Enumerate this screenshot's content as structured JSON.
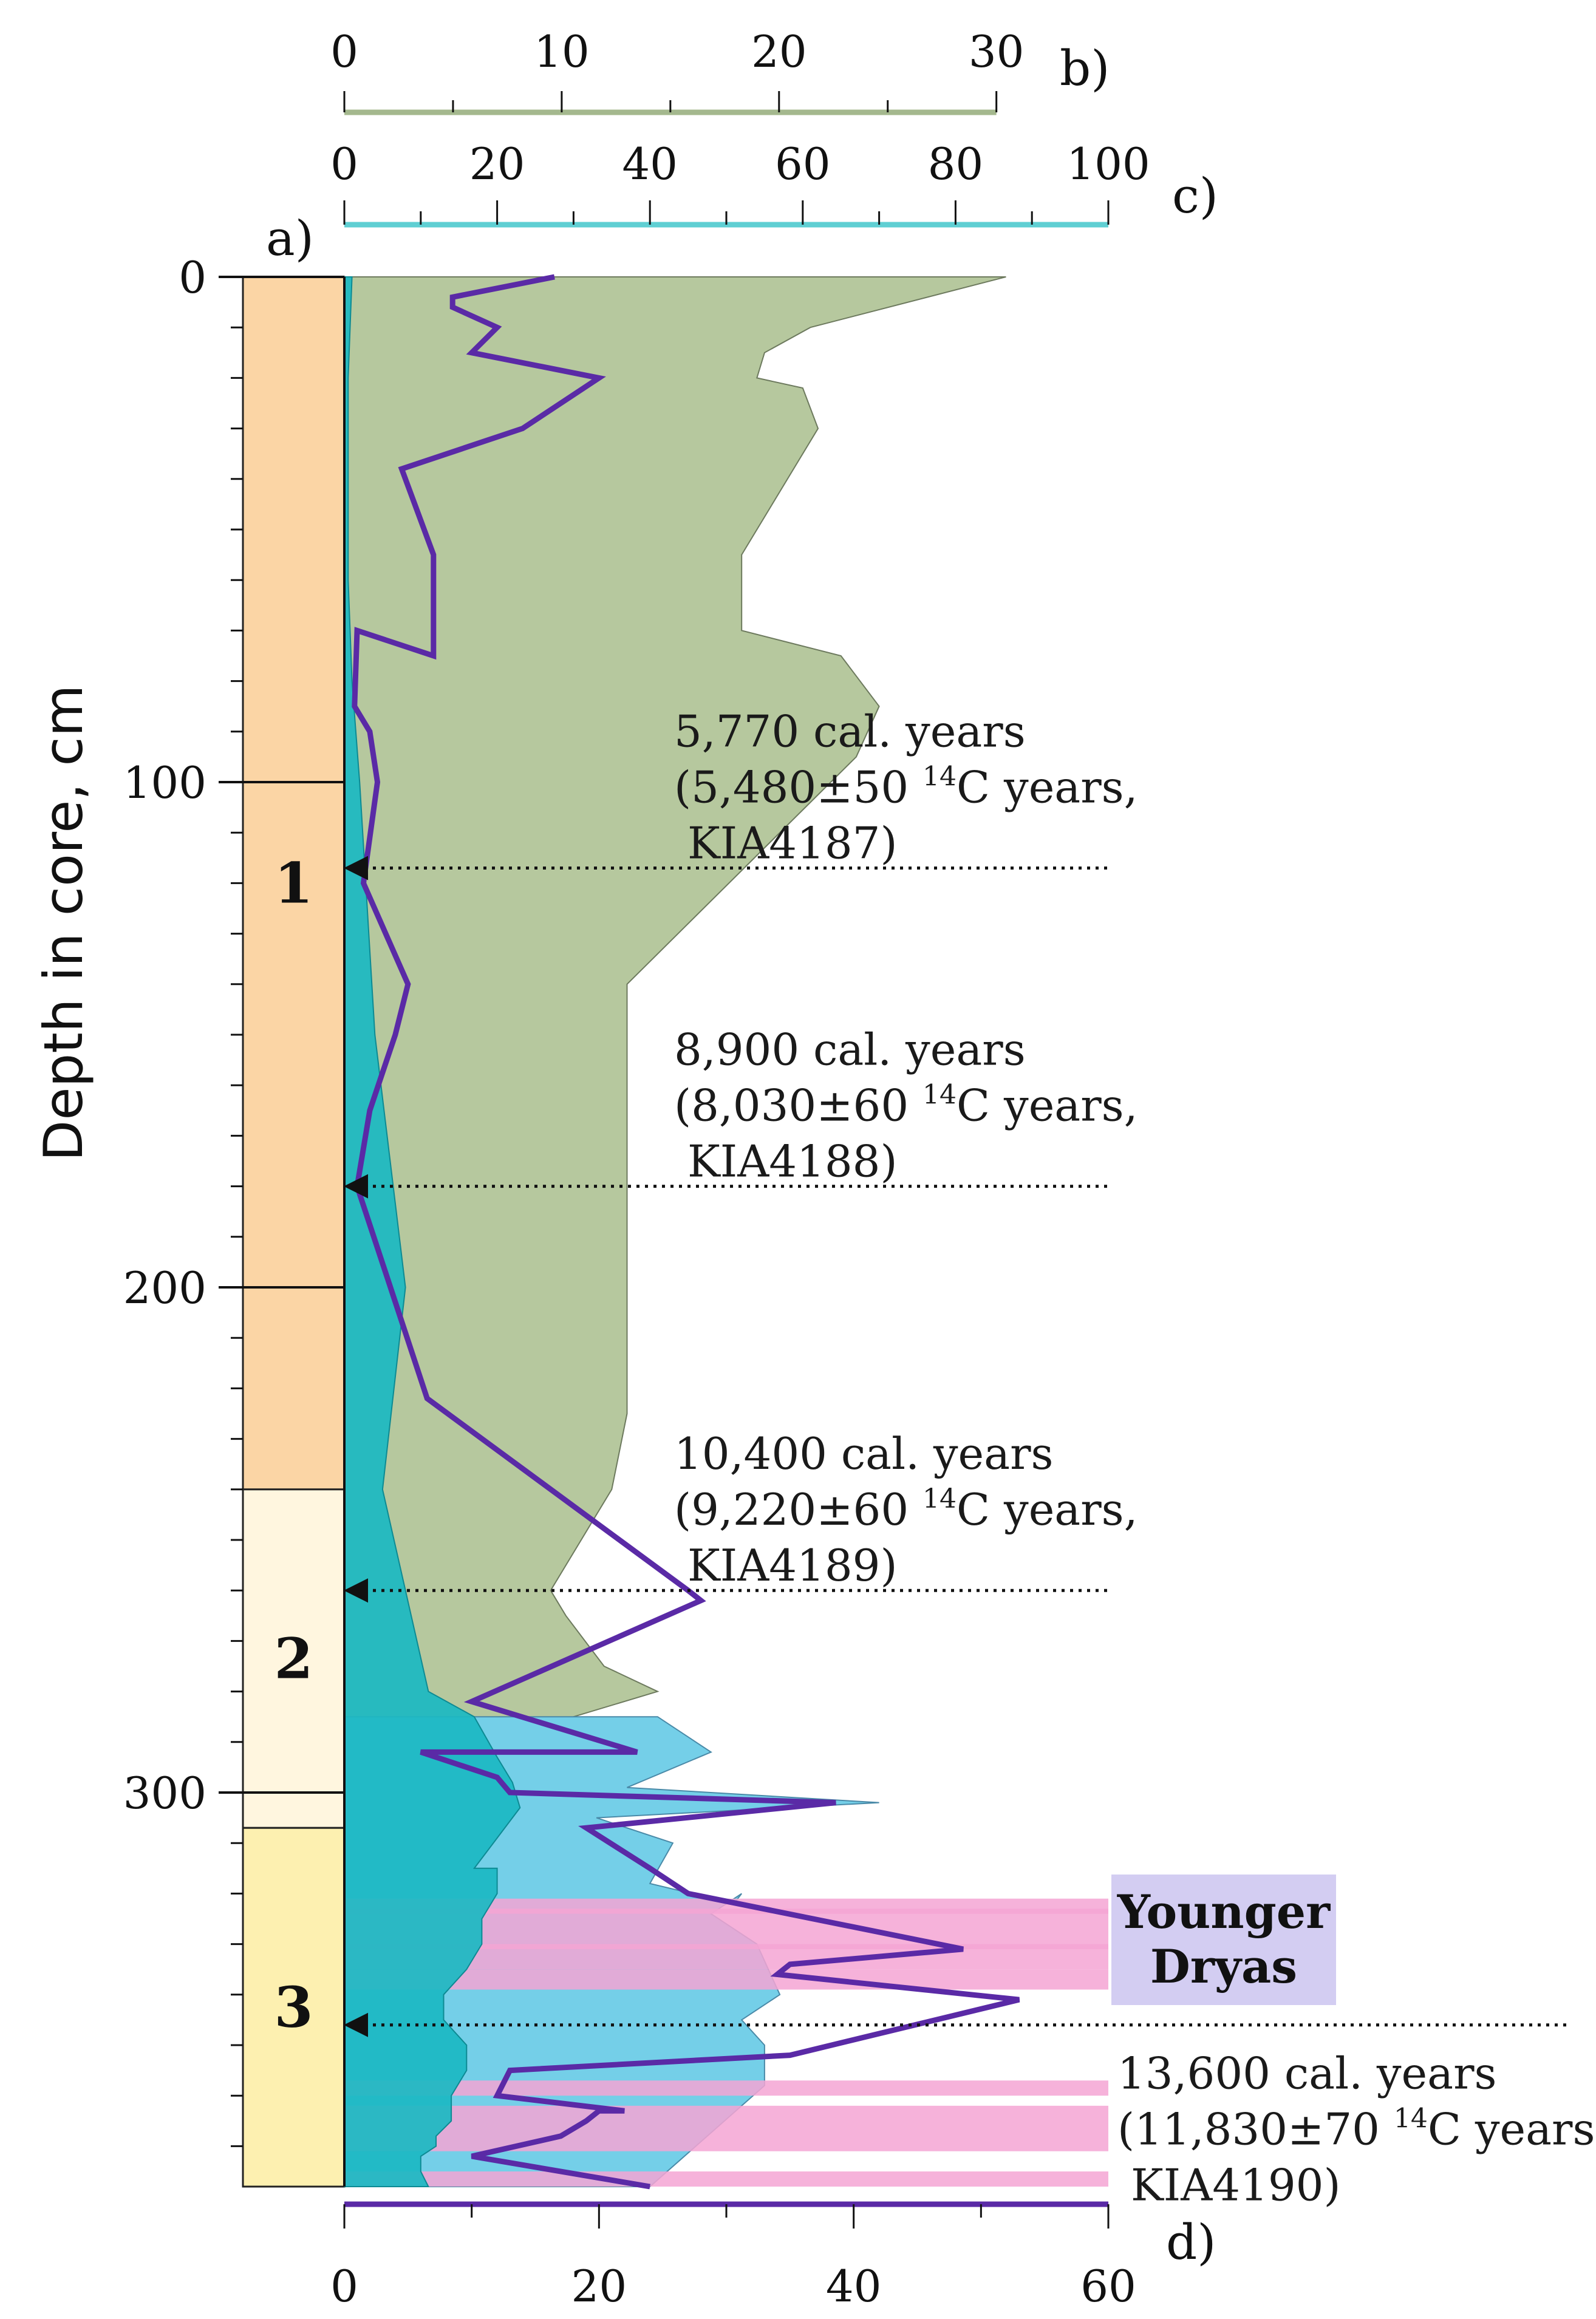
{
  "chart_data": {
    "type": "area",
    "ylabel": "Depth in core, cm",
    "ylim": [
      0,
      378
    ],
    "yticks": [
      0,
      100,
      200,
      300
    ],
    "panels": {
      "a": {
        "label": "a)",
        "name": "Zones",
        "zones": [
          {
            "label": "1",
            "top": 0,
            "bottom": 240,
            "color": "#fbd5a5"
          },
          {
            "label": "2",
            "top": 240,
            "bottom": 307,
            "color": "#fff6df"
          },
          {
            "label": "3",
            "top": 307,
            "bottom": 378,
            "color": "#fdf0b0"
          }
        ]
      },
      "b": {
        "label": "b)",
        "range": [
          0,
          30
        ],
        "ticks": [
          0,
          10,
          20,
          30
        ],
        "axis_color": "#a4b88e"
      },
      "c": {
        "label": "c)",
        "range": [
          0,
          100
        ],
        "ticks": [
          0,
          20,
          40,
          60,
          80,
          100
        ],
        "axis_color": "#5fcfd3"
      },
      "d": {
        "label": "d)",
        "range": [
          0,
          60
        ],
        "ticks": [
          0,
          20,
          40,
          60
        ],
        "axis_color": "#5a2aa6"
      }
    },
    "series": [
      {
        "name": "Green total (scale c)",
        "color": "#b6c89e",
        "scale": "c",
        "x": [
          86.6,
          61,
          55,
          54,
          60,
          62,
          52,
          52,
          65,
          70,
          67,
          37,
          37,
          37,
          37,
          35,
          27,
          29,
          34,
          41,
          30,
          37
        ],
        "depth": [
          0,
          10,
          15,
          20,
          22,
          30,
          55,
          70,
          75,
          85,
          95,
          140,
          180,
          190,
          225,
          240,
          260,
          265,
          275,
          280,
          285,
          290
        ]
      },
      {
        "name": "Light blue total (scale c)",
        "color": "#74cfe8",
        "scale": "c",
        "x": [
          41,
          48,
          37,
          70,
          33,
          43,
          40,
          51,
          52,
          48,
          54,
          57,
          52,
          55,
          55,
          40
        ],
        "depth": [
          285,
          292,
          299,
          302,
          305,
          310,
          318,
          322,
          320,
          324,
          330,
          340,
          345,
          350,
          358,
          378
        ]
      },
      {
        "name": "Teal (scale c)",
        "color": "#1bb8c2",
        "scale": "c",
        "x": [
          1,
          0.5,
          0.5,
          0.5,
          1,
          2,
          4,
          8,
          5,
          11,
          17,
          20,
          22,
          23,
          17,
          20,
          20,
          18,
          18,
          16,
          13,
          13,
          13,
          16,
          16,
          14,
          14,
          12,
          12,
          10,
          10,
          11
        ],
        "depth": [
          0,
          20,
          40,
          60,
          80,
          100,
          150,
          200,
          240,
          280,
          285,
          293,
          298,
          303,
          315,
          315,
          320,
          325,
          330,
          335,
          340,
          342,
          345,
          350,
          355,
          360,
          365,
          368,
          370,
          372,
          375,
          378
        ]
      },
      {
        "name": "Purple line (scale d)",
        "color": "#5a2aa6",
        "scale": "d",
        "x": [
          16.5,
          8.5,
          8.5,
          12,
          10,
          20,
          14,
          4.5,
          7,
          7,
          1,
          0.8,
          2,
          2.6,
          1.5,
          5,
          4,
          2,
          1,
          6.5,
          27,
          28,
          10,
          23,
          6,
          12,
          13,
          38.6,
          19,
          24,
          27,
          48.6,
          35,
          34,
          53,
          35,
          13,
          12,
          22,
          20,
          19,
          17,
          10,
          24
        ],
        "depth": [
          0,
          4,
          6,
          10,
          15,
          20,
          30,
          38,
          55,
          75,
          70,
          85,
          90,
          100,
          120,
          140,
          150,
          165,
          180,
          222,
          260,
          262,
          282,
          292,
          292,
          297,
          300,
          302,
          307,
          315,
          320,
          331,
          334,
          336,
          341,
          352,
          355,
          360,
          363,
          363,
          365,
          368,
          372,
          378
        ]
      }
    ],
    "younger_dryas_bands_depth": [
      [
        321,
        324
      ],
      [
        323,
        331
      ],
      [
        330,
        335
      ],
      [
        335,
        339
      ],
      [
        357,
        360
      ],
      [
        362,
        371
      ],
      [
        375,
        378
      ]
    ],
    "annotations": [
      {
        "depth": 117,
        "lines": [
          "5,770 cal. years",
          "(5,480±50 ",
          "14",
          "C years,",
          "KIA4187)"
        ]
      },
      {
        "depth": 180,
        "lines": [
          "8,900 cal. years",
          "(8,030±60 ",
          "14",
          "C years,",
          "KIA4188)"
        ]
      },
      {
        "depth": 260,
        "lines": [
          "10,400 cal. years",
          "(9,220±60 ",
          "14",
          "C years,",
          "KIA4189)"
        ]
      },
      {
        "depth": 346,
        "lines": [
          "13,600 cal. years",
          "(11,830±70 ",
          "14",
          "C years,",
          "KIA4190)"
        ]
      }
    ],
    "legend_box": "Younger Dryas",
    "legend_box_lines": [
      "Younger",
      "Dryas"
    ]
  }
}
